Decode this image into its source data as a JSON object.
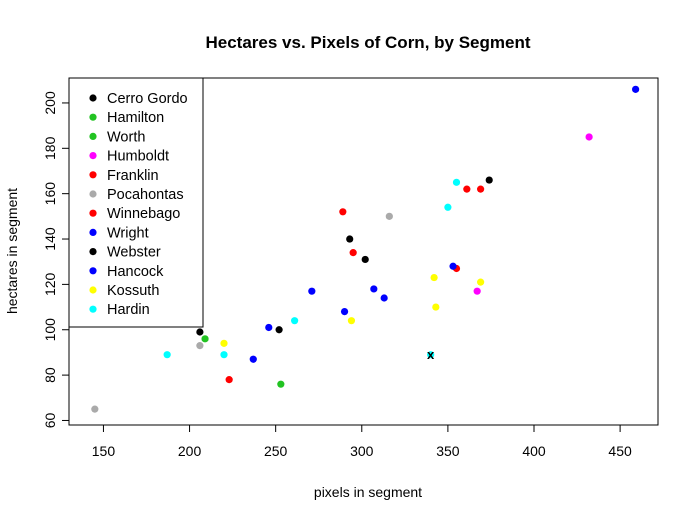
{
  "chart_data": {
    "type": "scatter",
    "title": "Hectares vs. Pixels of Corn, by Segment",
    "xlabel": "pixels in segment",
    "ylabel": "hectares in segment",
    "xlim": [
      130,
      472
    ],
    "ylim": [
      58,
      211
    ],
    "xticks": [
      150,
      200,
      250,
      300,
      350,
      400,
      450
    ],
    "yticks": [
      60,
      80,
      100,
      120,
      140,
      160,
      180,
      200
    ],
    "grid": false,
    "legend_position": "top-left",
    "series": [
      {
        "name": "Cerro Gordo",
        "color": "#000000",
        "points": [
          [
            206,
            99
          ],
          [
            252,
            100
          ],
          [
            293,
            140
          ],
          [
            302,
            131
          ],
          [
            374,
            166
          ]
        ]
      },
      {
        "name": "Hamilton",
        "color": "#22c322",
        "points": [
          [
            209,
            96
          ],
          [
            253,
            76
          ]
        ]
      },
      {
        "name": "Worth",
        "color": "#22c322",
        "points": []
      },
      {
        "name": "Humboldt",
        "color": "#ff00ff",
        "points": [
          [
            367,
            117
          ],
          [
            432,
            185
          ]
        ]
      },
      {
        "name": "Franklin",
        "color": "#ff0000",
        "points": [
          [
            295,
            134
          ],
          [
            361,
            162
          ],
          [
            369,
            162
          ]
        ]
      },
      {
        "name": "Pocahontas",
        "color": "#aaaaaa",
        "points": [
          [
            145,
            65
          ],
          [
            206,
            93
          ],
          [
            316,
            150
          ]
        ]
      },
      {
        "name": "Winnebago",
        "color": "#ff0000",
        "points": [
          [
            223,
            78
          ],
          [
            289,
            152
          ],
          [
            355,
            127
          ]
        ]
      },
      {
        "name": "Wright",
        "color": "#0000ff",
        "points": [
          [
            237,
            87
          ],
          [
            246,
            101
          ],
          [
            271,
            117
          ],
          [
            290,
            108
          ]
        ]
      },
      {
        "name": "Webster",
        "color": "#000000",
        "points": []
      },
      {
        "name": "Hancock",
        "color": "#0000ff",
        "points": [
          [
            307,
            118
          ],
          [
            313,
            114
          ],
          [
            353,
            128
          ],
          [
            459,
            206
          ]
        ]
      },
      {
        "name": "Kossuth",
        "color": "#ffff00",
        "points": [
          [
            220,
            94
          ],
          [
            294,
            104
          ],
          [
            342,
            123
          ],
          [
            343,
            110
          ],
          [
            369,
            121
          ]
        ]
      },
      {
        "name": "Hardin",
        "color": "#00ffff",
        "points": [
          [
            187,
            89
          ],
          [
            220,
            89
          ],
          [
            261,
            104
          ],
          [
            340,
            89
          ],
          [
            350,
            154
          ],
          [
            355,
            165
          ]
        ]
      }
    ],
    "annotations": [
      {
        "text": "x",
        "x": 340,
        "y": 89
      }
    ]
  }
}
